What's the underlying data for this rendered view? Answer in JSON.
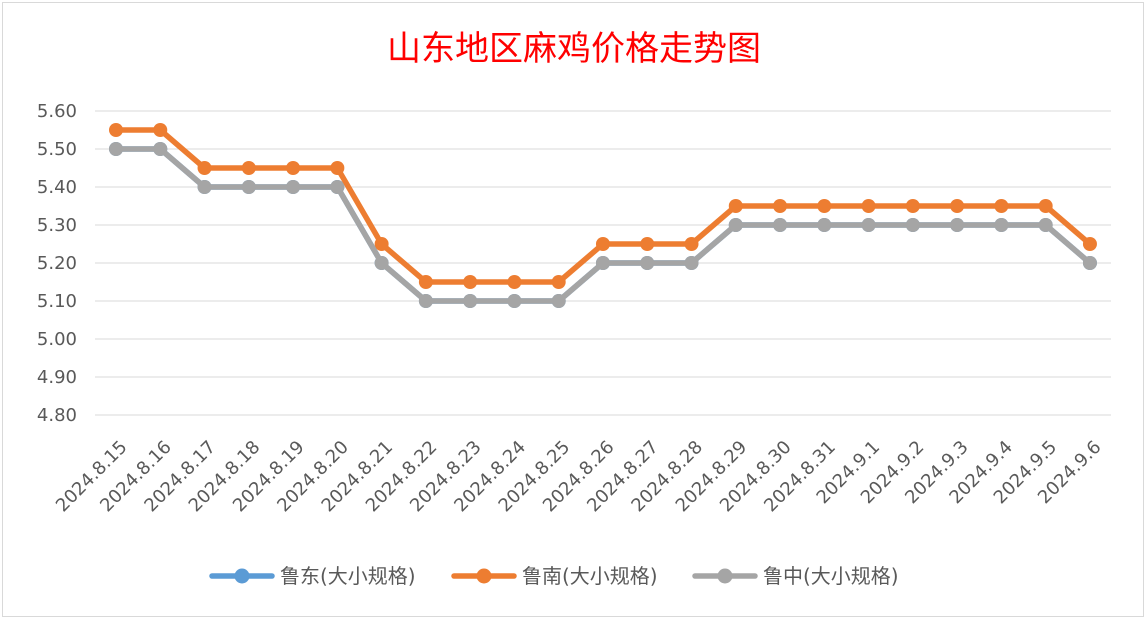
{
  "chart_data": {
    "type": "line",
    "title": "山东地区麻鸡价格走势图",
    "xlabel": "",
    "ylabel": "",
    "ylim": [
      4.8,
      5.6
    ],
    "yticks": [
      "5.60",
      "5.50",
      "5.40",
      "5.30",
      "5.20",
      "5.10",
      "5.00",
      "4.90",
      "4.80"
    ],
    "ytick_values": [
      5.6,
      5.5,
      5.4,
      5.3,
      5.2,
      5.1,
      5.0,
      4.9,
      4.8
    ],
    "grid": true,
    "legend_position": "bottom",
    "categories": [
      "2024.8.15",
      "2024.8.16",
      "2024.8.17",
      "2024.8.18",
      "2024.8.19",
      "2024.8.20",
      "2024.8.21",
      "2024.8.22",
      "2024.8.23",
      "2024.8.24",
      "2024.8.25",
      "2024.8.26",
      "2024.8.27",
      "2024.8.28",
      "2024.8.29",
      "2024.8.30",
      "2024.8.31",
      "2024.9.1",
      "2024.9.2",
      "2024.9.3",
      "2024.9.4",
      "2024.9.5",
      "2024.9.6"
    ],
    "series": [
      {
        "name": "鲁东(大小规格)",
        "color": "#5b9bd5",
        "values": [
          5.5,
          5.5,
          5.4,
          5.4,
          5.4,
          5.4,
          5.2,
          5.1,
          5.1,
          5.1,
          5.1,
          5.2,
          5.2,
          5.2,
          5.3,
          5.3,
          5.3,
          5.3,
          5.3,
          5.3,
          5.3,
          5.3,
          5.2
        ]
      },
      {
        "name": "鲁南(大小规格)",
        "color": "#ed7d31",
        "values": [
          5.55,
          5.55,
          5.45,
          5.45,
          5.45,
          5.45,
          5.25,
          5.15,
          5.15,
          5.15,
          5.15,
          5.25,
          5.25,
          5.25,
          5.35,
          5.35,
          5.35,
          5.35,
          5.35,
          5.35,
          5.35,
          5.35,
          5.25
        ]
      },
      {
        "name": "鲁中(大小规格)",
        "color": "#a5a5a5",
        "values": [
          5.5,
          5.5,
          5.4,
          5.4,
          5.4,
          5.4,
          5.2,
          5.1,
          5.1,
          5.1,
          5.1,
          5.2,
          5.2,
          5.2,
          5.3,
          5.3,
          5.3,
          5.3,
          5.3,
          5.3,
          5.3,
          5.3,
          5.2
        ]
      }
    ]
  }
}
